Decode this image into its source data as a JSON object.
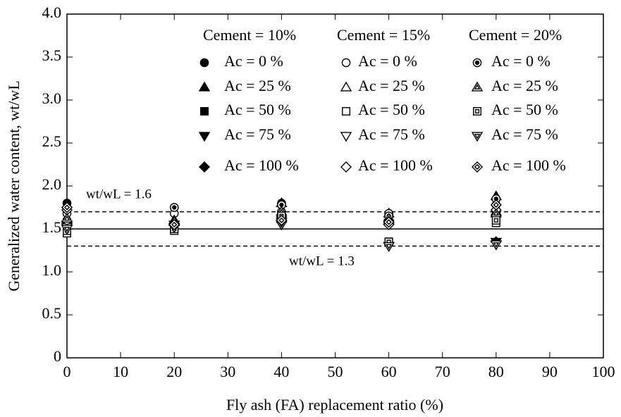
{
  "chart_data": {
    "type": "scatter",
    "xlabel": "Fly ash (FA) replacement ratio (%)",
    "ylabel": "Generalized water content, wt/wL",
    "xlim": [
      0,
      100
    ],
    "xticks": [
      0,
      10,
      20,
      30,
      40,
      50,
      60,
      70,
      80,
      90,
      100
    ],
    "ylim": [
      0,
      4
    ],
    "yticks": [
      0,
      0.5,
      {
        "value": 1,
        "label": "1.0"
      },
      1.5,
      {
        "value": 2,
        "label": "2.0"
      },
      2.5,
      {
        "value": 3,
        "label": "3.0"
      },
      3.5,
      {
        "value": 4,
        "label": "4.0"
      }
    ],
    "legend_groups": [
      "Cement = 10%",
      "Cement = 15%",
      "Cement = 20%"
    ],
    "reference_lines": [
      {
        "value": 1.7,
        "style": "dashed"
      },
      {
        "value": 1.5,
        "style": "solid"
      },
      {
        "value": 1.3,
        "style": "dashed"
      }
    ],
    "annotations": [
      "wt/wL = 1.6",
      "wt/wL = 1.3"
    ],
    "x": [
      0,
      20,
      40,
      60,
      80
    ],
    "series": [
      {
        "name": "Ac = 0 %",
        "group": 0,
        "marker": "circle",
        "fill": "filled",
        "color": "#000000",
        "values": [
          1.8,
          1.75,
          1.8,
          1.65,
          1.85
        ]
      },
      {
        "name": "Ac = 25 %",
        "group": 0,
        "marker": "triangle-up",
        "fill": "filled",
        "color": "#000000",
        "values": [
          1.6,
          1.6,
          1.8,
          1.68,
          1.88
        ]
      },
      {
        "name": "Ac = 50 %",
        "group": 0,
        "marker": "square",
        "fill": "filled",
        "color": "#000000",
        "values": [
          1.5,
          1.5,
          1.65,
          1.35,
          1.65
        ]
      },
      {
        "name": "Ac = 75 %",
        "group": 0,
        "marker": "triangle-down",
        "fill": "filled",
        "color": "#000000",
        "values": [
          1.55,
          1.55,
          1.55,
          1.3,
          1.35
        ]
      },
      {
        "name": "Ac = 100 %",
        "group": 0,
        "marker": "diamond",
        "fill": "filled",
        "color": "#000000",
        "values": [
          1.75,
          1.55,
          1.58,
          1.6,
          1.35
        ]
      },
      {
        "name": "Ac = 0 %",
        "group": 1,
        "marker": "circle",
        "fill": "open",
        "color": "#000000",
        "values": [
          1.68,
          1.68,
          1.7,
          1.68,
          1.78
        ]
      },
      {
        "name": "Ac = 25 %",
        "group": 1,
        "marker": "triangle-up",
        "fill": "open",
        "color": "#000000",
        "values": [
          1.58,
          1.6,
          1.68,
          1.6,
          1.7
        ]
      },
      {
        "name": "Ac = 50 %",
        "group": 1,
        "marker": "square",
        "fill": "open",
        "color": "#000000",
        "values": [
          1.45,
          1.48,
          1.62,
          1.35,
          1.57
        ]
      },
      {
        "name": "Ac = 75 %",
        "group": 1,
        "marker": "triangle-down",
        "fill": "open",
        "color": "#000000",
        "values": [
          1.52,
          1.52,
          1.55,
          1.3,
          1.32
        ]
      },
      {
        "name": "Ac = 100 %",
        "group": 1,
        "marker": "diamond",
        "fill": "open",
        "color": "#000000",
        "values": [
          1.72,
          1.55,
          1.62,
          1.55,
          1.72
        ]
      },
      {
        "name": "Ac = 0 %",
        "group": 2,
        "marker": "circle",
        "fill": "dotted",
        "color": "#000000",
        "values": [
          1.6,
          1.75,
          1.78,
          1.65,
          1.85
        ]
      },
      {
        "name": "Ac = 25 %",
        "group": 2,
        "marker": "triangle-up",
        "fill": "dotted",
        "color": "#000000",
        "values": [
          1.62,
          1.58,
          1.7,
          1.62,
          1.68
        ]
      },
      {
        "name": "Ac = 50 %",
        "group": 2,
        "marker": "square",
        "fill": "dotted",
        "color": "#000000",
        "values": [
          1.48,
          1.5,
          1.65,
          1.35,
          1.6
        ]
      },
      {
        "name": "Ac = 75 %",
        "group": 2,
        "marker": "triangle-down",
        "fill": "dotted",
        "color": "#000000",
        "values": [
          1.5,
          1.52,
          1.58,
          1.3,
          1.32
        ]
      },
      {
        "name": "Ac = 100 %",
        "group": 2,
        "marker": "diamond",
        "fill": "dotted",
        "color": "#000000",
        "values": [
          1.75,
          1.55,
          1.6,
          1.58,
          1.78
        ]
      }
    ]
  }
}
